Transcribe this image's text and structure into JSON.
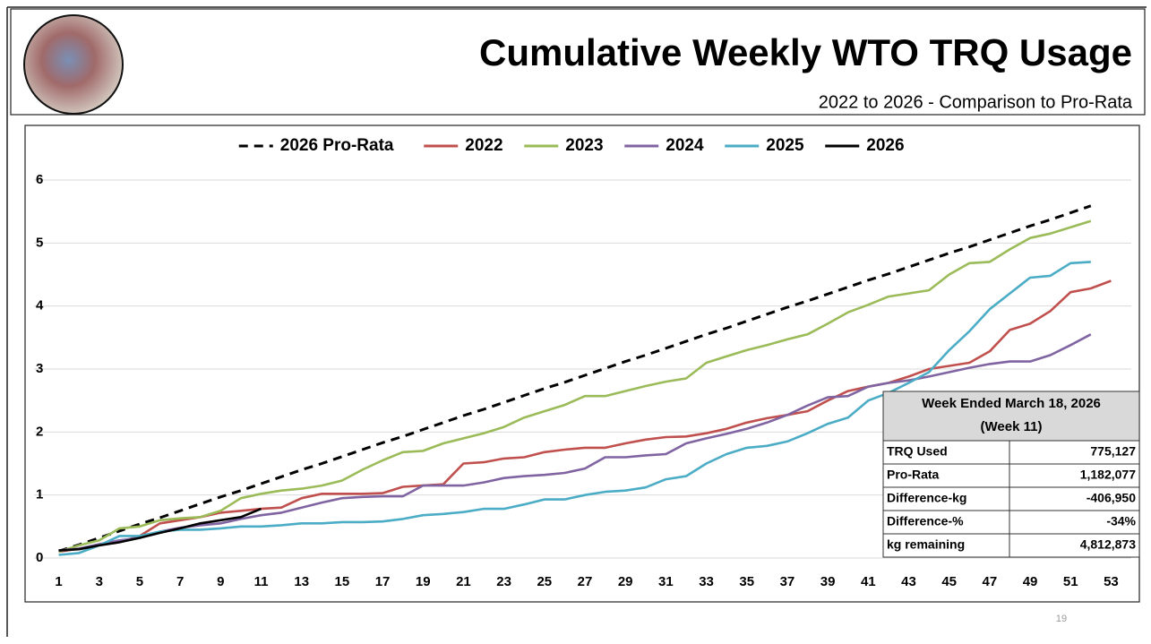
{
  "chart_data": {
    "type": "line",
    "title": "Cumulative Weekly WTO TRQ Usage",
    "subtitle": "2022 to 2026 - Comparison to Pro-Rata",
    "x": [
      1,
      2,
      3,
      4,
      5,
      6,
      7,
      8,
      9,
      10,
      11,
      12,
      13,
      14,
      15,
      16,
      17,
      18,
      19,
      20,
      21,
      22,
      23,
      24,
      25,
      26,
      27,
      28,
      29,
      30,
      31,
      32,
      33,
      34,
      35,
      36,
      37,
      38,
      39,
      40,
      41,
      42,
      43,
      44,
      45,
      46,
      47,
      48,
      49,
      50,
      51,
      52,
      53
    ],
    "xlim": [
      0,
      54
    ],
    "xticks": [
      1,
      3,
      5,
      7,
      9,
      11,
      13,
      15,
      17,
      19,
      21,
      23,
      25,
      27,
      29,
      31,
      33,
      35,
      37,
      39,
      41,
      43,
      45,
      47,
      49,
      51,
      53
    ],
    "ylim": [
      0,
      6
    ],
    "yticks": [
      0,
      1,
      2,
      3,
      4,
      5,
      6
    ],
    "grid": true,
    "legend": "top",
    "series": [
      {
        "name": "2026 Pro-Rata",
        "color": "#000000",
        "dashed": true,
        "values": [
          0.11,
          0.21,
          0.32,
          0.43,
          0.54,
          0.64,
          0.75,
          0.86,
          0.97,
          1.07,
          1.18,
          1.29,
          1.4,
          1.5,
          1.61,
          1.72,
          1.83,
          1.93,
          2.04,
          2.15,
          2.26,
          2.36,
          2.47,
          2.58,
          2.69,
          2.79,
          2.9,
          3.01,
          3.12,
          3.22,
          3.33,
          3.44,
          3.55,
          3.65,
          3.76,
          3.87,
          3.98,
          4.08,
          4.19,
          4.3,
          4.41,
          4.51,
          4.62,
          4.73,
          4.84,
          4.94,
          5.05,
          5.16,
          5.27,
          5.37,
          5.48,
          5.59,
          null
        ]
      },
      {
        "name": "2022",
        "color": "#c0504d",
        "values": [
          0.1,
          0.15,
          0.2,
          0.25,
          0.35,
          0.55,
          0.6,
          0.65,
          0.72,
          0.75,
          0.78,
          0.8,
          0.95,
          1.02,
          1.02,
          1.02,
          1.03,
          1.13,
          1.15,
          1.17,
          1.5,
          1.52,
          1.58,
          1.6,
          1.68,
          1.72,
          1.75,
          1.75,
          1.82,
          1.88,
          1.92,
          1.93,
          1.98,
          2.05,
          2.15,
          2.22,
          2.27,
          2.33,
          2.5,
          2.65,
          2.72,
          2.78,
          2.88,
          3.0,
          3.05,
          3.1,
          3.28,
          3.62,
          3.72,
          3.92,
          4.22,
          4.28,
          4.4
        ]
      },
      {
        "name": "2023",
        "color": "#9bbb59",
        "values": [
          0.1,
          0.2,
          0.28,
          0.47,
          0.5,
          0.6,
          0.63,
          0.65,
          0.75,
          0.95,
          1.02,
          1.07,
          1.1,
          1.15,
          1.23,
          1.4,
          1.55,
          1.68,
          1.7,
          1.82,
          1.9,
          1.98,
          2.08,
          2.23,
          2.33,
          2.43,
          2.57,
          2.57,
          2.65,
          2.73,
          2.8,
          2.85,
          3.1,
          3.2,
          3.3,
          3.38,
          3.47,
          3.55,
          3.72,
          3.9,
          4.02,
          4.15,
          4.2,
          4.25,
          4.5,
          4.68,
          4.7,
          4.9,
          5.08,
          5.15,
          5.25,
          5.35,
          null
        ]
      },
      {
        "name": "2024",
        "color": "#8064a2",
        "values": [
          0.12,
          0.15,
          0.22,
          0.28,
          0.32,
          0.42,
          0.48,
          0.52,
          0.55,
          0.62,
          0.68,
          0.72,
          0.8,
          0.88,
          0.95,
          0.97,
          0.98,
          0.98,
          1.15,
          1.15,
          1.15,
          1.2,
          1.27,
          1.3,
          1.32,
          1.35,
          1.42,
          1.6,
          1.6,
          1.63,
          1.65,
          1.82,
          1.9,
          1.97,
          2.05,
          2.15,
          2.27,
          2.42,
          2.55,
          2.57,
          2.72,
          2.78,
          2.82,
          2.88,
          2.95,
          3.02,
          3.08,
          3.12,
          3.12,
          3.22,
          3.38,
          3.55,
          null
        ]
      },
      {
        "name": "2025",
        "color": "#4bacc6",
        "values": [
          0.05,
          0.08,
          0.2,
          0.35,
          0.35,
          0.42,
          0.45,
          0.45,
          0.47,
          0.5,
          0.5,
          0.52,
          0.55,
          0.55,
          0.57,
          0.57,
          0.58,
          0.62,
          0.68,
          0.7,
          0.73,
          0.78,
          0.78,
          0.85,
          0.93,
          0.93,
          1.0,
          1.05,
          1.07,
          1.12,
          1.25,
          1.3,
          1.5,
          1.65,
          1.75,
          1.78,
          1.85,
          1.98,
          2.13,
          2.23,
          2.5,
          2.62,
          2.78,
          2.95,
          3.3,
          3.6,
          3.95,
          4.2,
          4.45,
          4.48,
          4.68,
          4.7,
          null
        ]
      },
      {
        "name": "2026",
        "color": "#000000",
        "values": [
          0.12,
          0.14,
          0.2,
          0.25,
          0.32,
          0.4,
          0.47,
          0.55,
          0.6,
          0.65,
          0.78,
          null,
          null,
          null,
          null,
          null,
          null,
          null,
          null,
          null,
          null,
          null,
          null,
          null,
          null,
          null,
          null,
          null,
          null,
          null,
          null,
          null,
          null,
          null,
          null,
          null,
          null,
          null,
          null,
          null,
          null,
          null,
          null,
          null,
          null,
          null,
          null,
          null,
          null,
          null,
          null,
          null,
          null
        ]
      }
    ]
  },
  "summary_table": {
    "title": [
      "Week Ended March 18, 2026",
      "(Week 11)"
    ],
    "rows": [
      [
        "TRQ Used",
        "775,127"
      ],
      [
        "Pro-Rata",
        "1,182,077"
      ],
      [
        "Difference-kg",
        "-406,950"
      ],
      [
        "Difference-%",
        "-34%"
      ],
      [
        "kg remaining",
        "4,812,873"
      ]
    ]
  },
  "page_number": "19"
}
